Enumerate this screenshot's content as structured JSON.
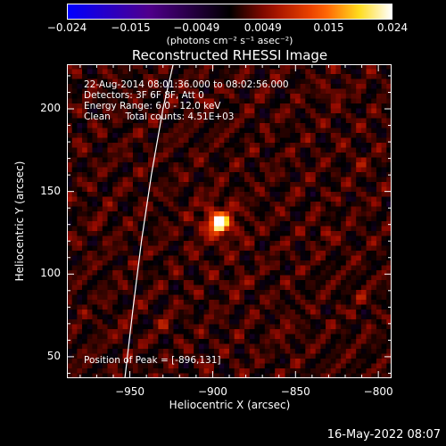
{
  "colorbar": {
    "tick_labels": [
      "−0.024",
      "−0.015",
      "−0.0049",
      "0.0049",
      "0.015",
      "0.024"
    ],
    "units": "(photons cm⁻² s⁻¹ asec⁻²)"
  },
  "chart_data": {
    "type": "heatmap",
    "title": "Reconstructed RHESSI Image",
    "xlabel": "Heliocentric X (arcsec)",
    "ylabel": "Heliocentric Y (arcsec)",
    "xlim": [
      -988,
      -792
    ],
    "ylim": [
      37,
      227
    ],
    "x_ticks": [
      -950,
      -900,
      -850,
      -800
    ],
    "x_tick_labels": [
      "−950",
      "−900",
      "−850",
      "−800"
    ],
    "y_ticks": [
      50,
      100,
      150,
      200
    ],
    "y_tick_labels": [
      "50",
      "100",
      "150",
      "200"
    ],
    "color_range": [
      -0.024,
      0.024
    ],
    "colormap": "blue-purple-red-yellow-white",
    "peak_position": [
      -896,
      131
    ],
    "info_lines": [
      "22-Aug-2014 08:01:36.000 to 08:02:56.000",
      "Detectors: 3F 6F 8F, Att 0",
      "Energy Range: 6.0 - 12.0 keV",
      "Clean     Total counts: 4.51E+03"
    ],
    "peak_label": "Position of Peak = [-896,131]",
    "limb_line_color": "#ffffff"
  },
  "footer": {
    "timestamp": "16-May-2022 08:07"
  }
}
